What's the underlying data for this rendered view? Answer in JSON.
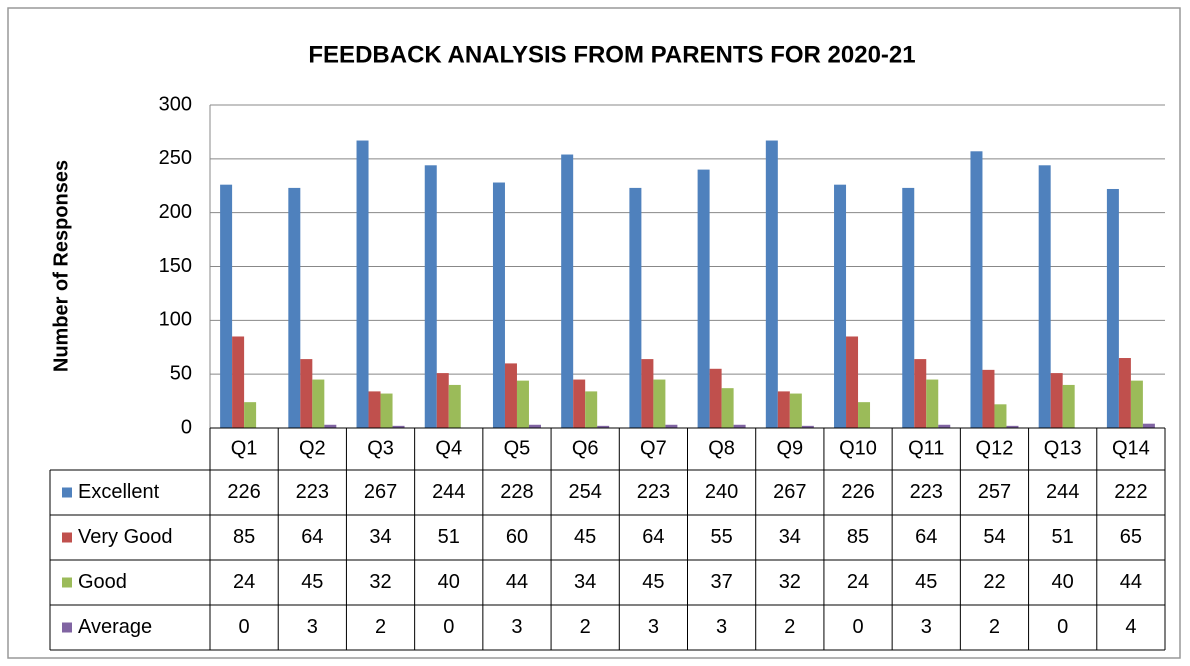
{
  "chart_data": {
    "type": "bar",
    "title": "FEEDBACK ANALYSIS FROM PARENTS FOR 2020-21",
    "y_label": "Number of Responses",
    "categories": [
      "Q1",
      "Q2",
      "Q3",
      "Q4",
      "Q5",
      "Q6",
      "Q7",
      "Q8",
      "Q9",
      "Q10",
      "Q11",
      "Q12",
      "Q13",
      "Q14"
    ],
    "series": [
      {
        "name": "Excellent",
        "color": "#4f81bd",
        "values": [
          226,
          223,
          267,
          244,
          228,
          254,
          223,
          240,
          267,
          226,
          223,
          257,
          244,
          222
        ]
      },
      {
        "name": "Very Good",
        "color": "#c0504d",
        "values": [
          85,
          64,
          34,
          51,
          60,
          45,
          64,
          55,
          34,
          85,
          64,
          54,
          51,
          65
        ]
      },
      {
        "name": "Good",
        "color": "#9bbb59",
        "values": [
          24,
          45,
          32,
          40,
          44,
          34,
          45,
          37,
          32,
          24,
          45,
          22,
          40,
          44
        ]
      },
      {
        "name": "Average",
        "color": "#8064a2",
        "values": [
          0,
          3,
          2,
          0,
          3,
          2,
          3,
          3,
          2,
          0,
          3,
          2,
          0,
          4
        ]
      }
    ],
    "ylim": [
      0,
      300
    ],
    "yticks": [
      0,
      50,
      100,
      150,
      200,
      250,
      300
    ],
    "grid": true,
    "data_table": true
  }
}
